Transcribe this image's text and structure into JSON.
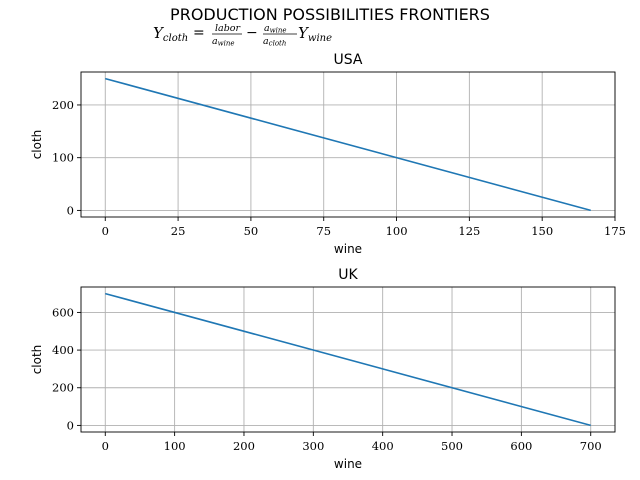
{
  "figure": {
    "title": "PRODUCTION POSSIBILITIES FRONTIERS",
    "formula": {
      "lhs_main": "Y",
      "lhs_sub": "cloth",
      "frac1_num": "labor",
      "frac1_den_main": "a",
      "frac1_den_sub": "wine",
      "frac2_num_main": "a",
      "frac2_num_sub": "wine",
      "frac2_den_main": "a",
      "frac2_den_sub": "cloth",
      "rhs_main": "Y",
      "rhs_sub": "wine"
    }
  },
  "chart_data": [
    {
      "type": "line",
      "title": "USA",
      "xlabel": "wine",
      "ylabel": "cloth",
      "xlim": [
        -8.33,
        175
      ],
      "ylim": [
        -12.5,
        262.5
      ],
      "xticks": [
        0,
        25,
        50,
        75,
        100,
        125,
        150,
        175
      ],
      "yticks": [
        0,
        100,
        200
      ],
      "grid": true,
      "color": "#1f77b4",
      "series": [
        {
          "x": [
            0,
            166.67
          ],
          "y": [
            250,
            0
          ]
        }
      ]
    },
    {
      "type": "line",
      "title": "UK",
      "xlabel": "wine",
      "ylabel": "cloth",
      "xlim": [
        -35,
        735
      ],
      "ylim": [
        -35,
        735
      ],
      "xticks": [
        0,
        100,
        200,
        300,
        400,
        500,
        600,
        700
      ],
      "yticks": [
        0,
        200,
        400,
        600
      ],
      "grid": true,
      "color": "#1f77b4",
      "series": [
        {
          "x": [
            0,
            700
          ],
          "y": [
            700,
            0
          ]
        }
      ]
    }
  ]
}
